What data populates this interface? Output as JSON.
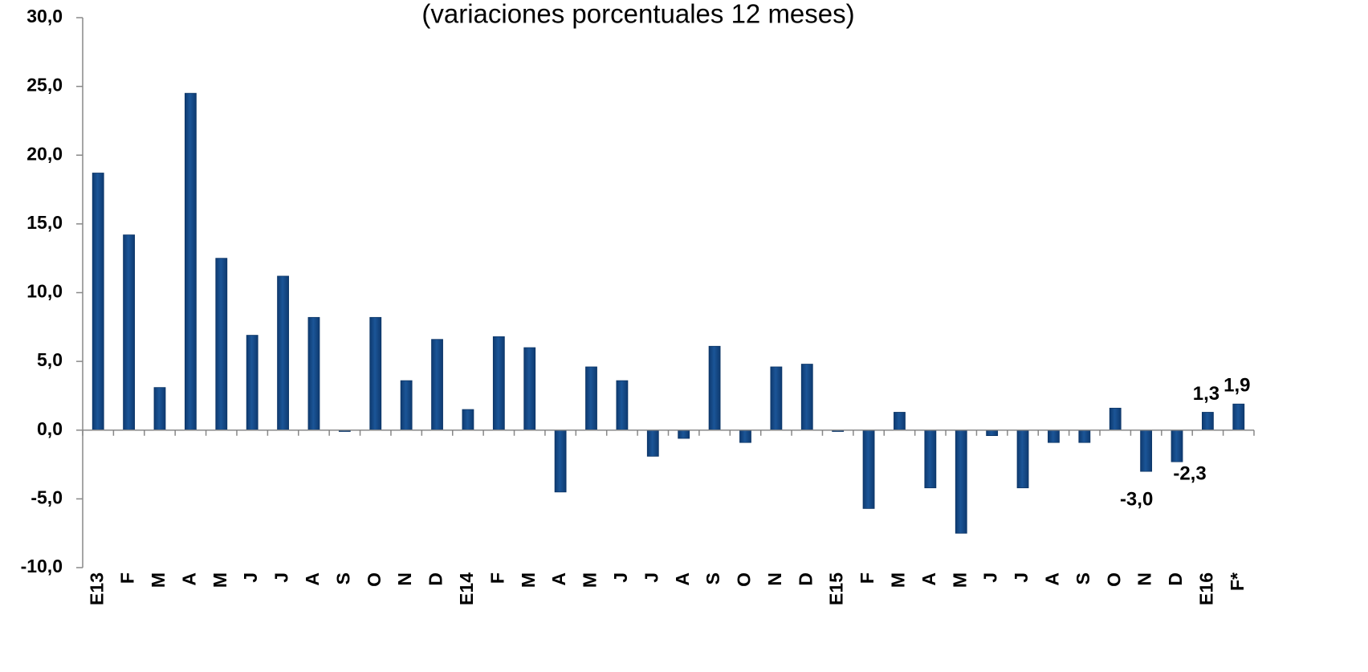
{
  "chart_data": {
    "type": "bar",
    "title": "(variaciones porcentuales 12 meses)",
    "categories": [
      "E13",
      "F",
      "M",
      "A",
      "M",
      "J",
      "J",
      "A",
      "S",
      "O",
      "N",
      "D",
      "E14",
      "F",
      "M",
      "A",
      "M",
      "J",
      "J",
      "A",
      "S",
      "O",
      "N",
      "D",
      "E15",
      "F",
      "M",
      "A",
      "M",
      "J",
      "J",
      "A",
      "S",
      "O",
      "N",
      "D",
      "E16",
      "F*"
    ],
    "values": [
      18.7,
      14.2,
      3.1,
      24.5,
      12.5,
      6.9,
      11.2,
      8.2,
      -0.1,
      8.2,
      3.6,
      6.6,
      1.5,
      6.8,
      6.0,
      -4.5,
      4.6,
      3.6,
      -1.9,
      -0.6,
      6.1,
      -0.9,
      4.6,
      4.8,
      -0.1,
      -5.7,
      1.3,
      -4.2,
      -7.5,
      -0.4,
      -4.2,
      -0.9,
      -0.9,
      1.6,
      -3.0,
      -2.3,
      1.3,
      1.9
    ],
    "value_labels": [
      null,
      null,
      null,
      null,
      null,
      null,
      null,
      null,
      null,
      null,
      null,
      null,
      null,
      null,
      null,
      null,
      null,
      null,
      null,
      null,
      null,
      null,
      null,
      null,
      null,
      null,
      null,
      null,
      null,
      null,
      null,
      null,
      null,
      null,
      "-3,0",
      "-2,3",
      "1,3",
      "1,9"
    ],
    "color": "#1b5597",
    "ylim": [
      -10,
      30
    ],
    "yticks": [
      {
        "value": -10,
        "label": "-10,0"
      },
      {
        "value": -5,
        "label": "-5,0"
      },
      {
        "value": 0,
        "label": "0,0"
      },
      {
        "value": 5,
        "label": "5,0"
      },
      {
        "value": 10,
        "label": "10,0"
      },
      {
        "value": 15,
        "label": "15,0"
      },
      {
        "value": 20,
        "label": "20,0"
      },
      {
        "value": 25,
        "label": "25,0"
      },
      {
        "value": 30,
        "label": "30,0"
      }
    ],
    "grid": false
  }
}
